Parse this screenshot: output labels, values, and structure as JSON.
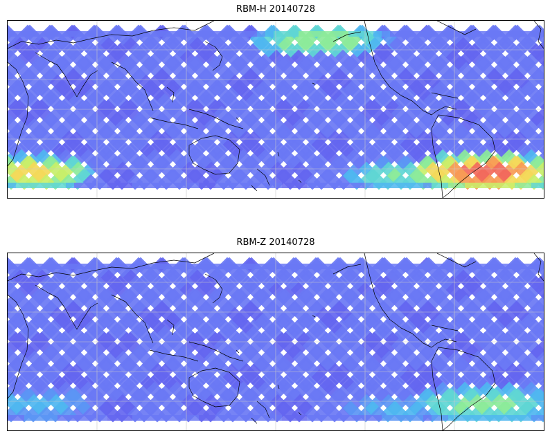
{
  "panels": [
    {
      "title": "RBM-H 20140728",
      "palette": [
        "#6466f0",
        "#6a78f4",
        "#5b95f4",
        "#4fb6f0",
        "#5fd6d4",
        "#8cea9a",
        "#c8ef6a",
        "#f3d95a",
        "#f79a55",
        "#f26a5c"
      ],
      "hot_regions": [
        {
          "name": "south-atlantic-band",
          "level": 0.95
        },
        {
          "name": "south-indian-band",
          "level": 0.75
        },
        {
          "name": "north-pacific-band",
          "level": 0.6
        },
        {
          "name": "southeast-pacific-band",
          "level": 0.55
        }
      ]
    },
    {
      "title": "RBM-Z 20140728",
      "palette": [
        "#6466f0",
        "#6a78f4",
        "#5b95f4",
        "#4fb6f0",
        "#5fd6d4",
        "#8cea9a",
        "#c8ef6a",
        "#f3d95a",
        "#f79a55",
        "#f26a5c"
      ],
      "hot_regions": [
        {
          "name": "south-atlantic-band",
          "level": 0.55
        },
        {
          "name": "south-indian-band",
          "level": 0.35
        },
        {
          "name": "north-pacific-band",
          "level": 0.2
        },
        {
          "name": "southeast-pacific-band",
          "level": 0.35
        }
      ]
    }
  ],
  "colors": {
    "coastline": "#000000",
    "grid": "#c8c8c8",
    "frame": "#000000"
  }
}
